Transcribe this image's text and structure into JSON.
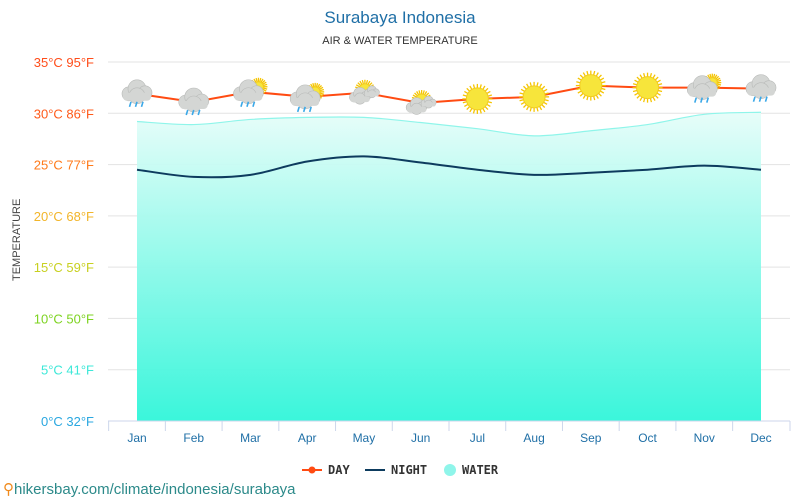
{
  "chart_data": {
    "type": "line",
    "title": "Surabaya Indonesia",
    "subtitle": "AIR & WATER TEMPERATURE",
    "ylabel": "TEMPERATURE",
    "ylim": [
      0,
      35
    ],
    "yticks": [
      {
        "value": 0,
        "label": "0°C 32°F",
        "color": "#2aa7e0"
      },
      {
        "value": 5,
        "label": "5°C 41°F",
        "color": "#3de8d8"
      },
      {
        "value": 10,
        "label": "10°C 50°F",
        "color": "#7ed321"
      },
      {
        "value": 15,
        "label": "15°C 59°F",
        "color": "#c8d020"
      },
      {
        "value": 20,
        "label": "20°C 68°F",
        "color": "#f2b52a"
      },
      {
        "value": 25,
        "label": "25°C 77°F",
        "color": "#ff7a1a"
      },
      {
        "value": 30,
        "label": "30°C 86°F",
        "color": "#ff5a1a"
      },
      {
        "value": 35,
        "label": "35°C 95°F",
        "color": "#ff4d1a"
      }
    ],
    "categories": [
      "Jan",
      "Feb",
      "Mar",
      "Apr",
      "May",
      "Jun",
      "Jul",
      "Aug",
      "Sep",
      "Oct",
      "Nov",
      "Dec"
    ],
    "series": [
      {
        "name": "DAY",
        "color": "#ff4b12",
        "values": [
          31.9,
          31.1,
          32.1,
          31.6,
          32.0,
          31.0,
          31.4,
          31.6,
          32.7,
          32.5,
          32.5,
          32.4
        ]
      },
      {
        "name": "NIGHT",
        "color": "#0d3b5e",
        "values": [
          24.5,
          23.8,
          24.0,
          25.3,
          25.8,
          25.2,
          24.5,
          24.0,
          24.2,
          24.5,
          24.9,
          24.5
        ]
      },
      {
        "name": "WATER",
        "color": "#8ff5ea",
        "values": [
          29.2,
          28.9,
          29.4,
          29.6,
          29.6,
          29.1,
          28.5,
          27.8,
          28.3,
          28.9,
          29.9,
          30.1
        ]
      }
    ],
    "weather_icons": [
      "rain",
      "rain",
      "sun-cloud-rain",
      "sun-cloud-rain",
      "partly-cloudy",
      "partly-cloudy",
      "sun",
      "sun",
      "sun",
      "sun",
      "sun-cloud-rain",
      "rain"
    ],
    "grid": true,
    "legend": "bottom"
  },
  "footer": {
    "url": "hikersbay.com/climate/indonesia/surabaya",
    "pin_icon": "location-pin-icon"
  }
}
